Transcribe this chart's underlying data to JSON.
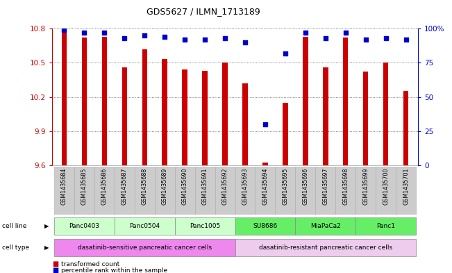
{
  "title": "GDS5627 / ILMN_1713189",
  "samples": [
    "GSM1435684",
    "GSM1435685",
    "GSM1435686",
    "GSM1435687",
    "GSM1435688",
    "GSM1435689",
    "GSM1435690",
    "GSM1435691",
    "GSM1435692",
    "GSM1435693",
    "GSM1435694",
    "GSM1435695",
    "GSM1435696",
    "GSM1435697",
    "GSM1435698",
    "GSM1435699",
    "GSM1435700",
    "GSM1435701"
  ],
  "transformed_counts": [
    10.78,
    10.72,
    10.73,
    10.46,
    10.62,
    10.53,
    10.44,
    10.43,
    10.5,
    10.32,
    9.62,
    10.15,
    10.73,
    10.46,
    10.72,
    10.42,
    10.5,
    10.25
  ],
  "percentile_ranks": [
    99,
    97,
    97,
    93,
    95,
    94,
    92,
    92,
    93,
    90,
    30,
    82,
    97,
    93,
    97,
    92,
    93,
    92
  ],
  "bar_color": "#cc0000",
  "dot_color": "#0000cc",
  "ylim_left": [
    9.6,
    10.8
  ],
  "ylim_right": [
    0,
    100
  ],
  "yticks_left": [
    9.6,
    9.9,
    10.2,
    10.5,
    10.8
  ],
  "yticks_right": [
    0,
    25,
    50,
    75,
    100
  ],
  "ytick_labels_right": [
    "0",
    "25",
    "50",
    "75",
    "100%"
  ],
  "cell_lines": [
    {
      "name": "Panc0403",
      "start": 0,
      "end": 2,
      "color": "#ccffcc"
    },
    {
      "name": "Panc0504",
      "start": 3,
      "end": 5,
      "color": "#ccffcc"
    },
    {
      "name": "Panc1005",
      "start": 6,
      "end": 8,
      "color": "#ccffcc"
    },
    {
      "name": "SU8686",
      "start": 9,
      "end": 11,
      "color": "#66ee66"
    },
    {
      "name": "MiaPaCa2",
      "start": 12,
      "end": 14,
      "color": "#66ee66"
    },
    {
      "name": "Panc1",
      "start": 15,
      "end": 17,
      "color": "#66ee66"
    }
  ],
  "cell_types": [
    {
      "name": "dasatinib-sensitive pancreatic cancer cells",
      "start": 0,
      "end": 8,
      "color": "#ee88ee"
    },
    {
      "name": "dasatinib-resistant pancreatic cancer cells",
      "start": 9,
      "end": 17,
      "color": "#eeccee"
    }
  ],
  "legend_items": [
    {
      "color": "#cc0000",
      "label": "transformed count"
    },
    {
      "color": "#0000cc",
      "label": "percentile rank within the sample"
    }
  ],
  "bg_color": "#ffffff",
  "grid_color": "#555555",
  "left_tick_color": "#cc0000",
  "right_tick_color": "#0000cc",
  "xtick_bg_color": "#cccccc",
  "bar_width": 0.25
}
